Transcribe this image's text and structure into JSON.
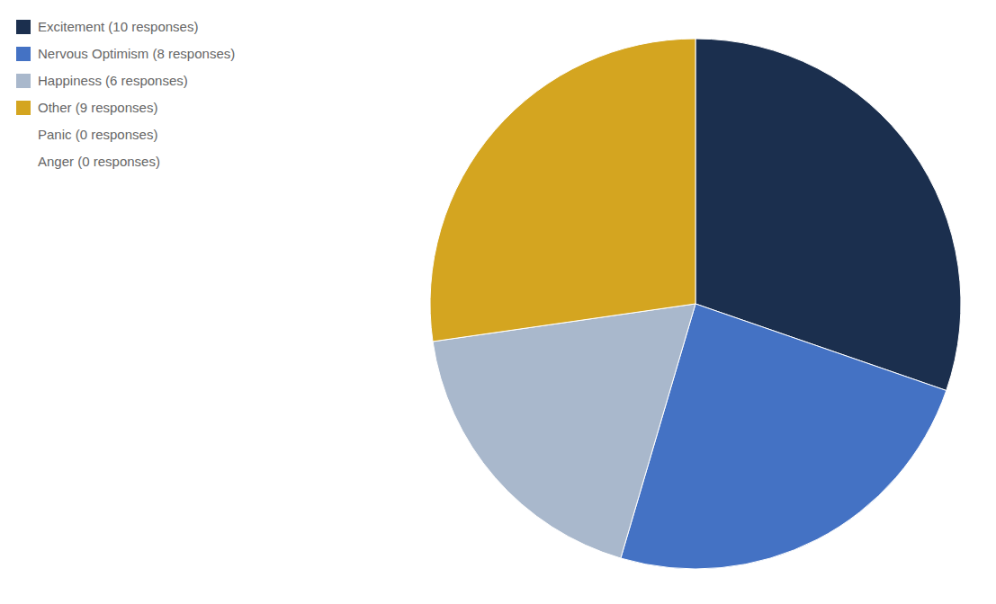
{
  "chart_data": {
    "type": "pie",
    "categories": [
      "Excitement (10 responses)",
      "Nervous Optimism (8 responses)",
      "Happiness (6 responses)",
      "Other (9 responses)",
      "Panic (0 responses)",
      "Anger (0 responses)"
    ],
    "values": [
      10,
      8,
      6,
      9,
      0,
      0
    ],
    "colors": [
      "#1b2f4e",
      "#4472c4",
      "#a9b8cc",
      "#d4a520",
      "#ffffff",
      "#ffffff"
    ],
    "legend": "upper left"
  }
}
